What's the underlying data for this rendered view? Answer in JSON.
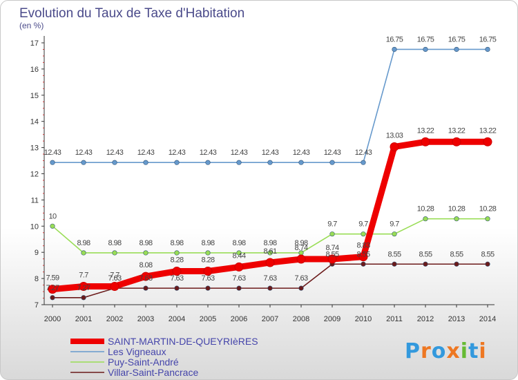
{
  "chart_data": {
    "type": "line",
    "title": "Evolution du Taux de Taxe d'Habitation",
    "subtitle": "(en %)",
    "x": [
      "2000",
      "2001",
      "2002",
      "2003",
      "2004",
      "2005",
      "2006",
      "2007",
      "2008",
      "2009",
      "2010",
      "2011",
      "2012",
      "2013",
      "2014"
    ],
    "yticks": [
      "7",
      "8",
      "9",
      "10",
      "11",
      "12",
      "13",
      "14",
      "15",
      "16",
      "17"
    ],
    "ylim": [
      7,
      17
    ],
    "series": [
      {
        "name": "Villar-Saint-Pancrace",
        "color": "#6b1a1a",
        "values": [
          7.27,
          7.27,
          7.63,
          7.63,
          7.63,
          7.63,
          7.63,
          7.63,
          7.63,
          8.55,
          8.55,
          8.55,
          8.55,
          8.55,
          8.55
        ],
        "labels": [
          "7.27",
          "7.27",
          "7.63",
          "7.63",
          "7.63",
          "7.63",
          "7.63",
          "7.63",
          "7.63",
          "8.55",
          "8.55",
          "8.55",
          "8.55",
          "8.55",
          "8.55"
        ]
      },
      {
        "name": "Puy-Saint-André",
        "color": "#99dd55",
        "values": [
          10,
          8.98,
          8.98,
          8.98,
          8.98,
          8.98,
          8.98,
          8.98,
          8.98,
          9.7,
          9.7,
          9.7,
          10.28,
          10.28,
          10.28
        ],
        "labels": [
          "10",
          "8.98",
          "8.98",
          "8.98",
          "8.98",
          "8.98",
          "8.98",
          "8.98",
          "8.98",
          "9.7",
          "9.7",
          "9.7",
          "10.28",
          "10.28",
          "10.28"
        ]
      },
      {
        "name": "Les Vigneaux",
        "color": "#6699cc",
        "values": [
          12.43,
          12.43,
          12.43,
          12.43,
          12.43,
          12.43,
          12.43,
          12.43,
          12.43,
          12.43,
          12.43,
          16.75,
          16.75,
          16.75,
          16.75
        ],
        "labels": [
          "12.43",
          "12.43",
          "12.43",
          "12.43",
          "12.43",
          "12.43",
          "12.43",
          "12.43",
          "12.43",
          "12.43",
          "12.43",
          "16.75",
          "16.75",
          "16.75",
          "16.75"
        ]
      },
      {
        "name": "SAINT-MARTIN-DE-QUEYRIèRES",
        "color": "#ee0000",
        "values": [
          7.59,
          7.7,
          7.7,
          8.08,
          8.28,
          8.28,
          8.44,
          8.61,
          8.74,
          8.74,
          8.83,
          13.03,
          13.22,
          13.22,
          13.22
        ],
        "labels": [
          "7.59",
          "7.7",
          "7.7",
          "8.08",
          "8.28",
          "8.28",
          "8.44",
          "8.61",
          "8.74",
          "8.74",
          "8.83",
          "13.03",
          "13.22",
          "13.22",
          "13.22"
        ]
      }
    ],
    "legend_order": [
      "SAINT-MARTIN-DE-QUEYRIèRES",
      "Les Vigneaux",
      "Puy-Saint-André",
      "Villar-Saint-Pancrace"
    ],
    "legend_position": "bottom-left"
  },
  "logo": {
    "text": "Proxiti",
    "letters": [
      "P",
      "r",
      "o",
      "x",
      "i",
      "t",
      "i"
    ],
    "colors": [
      "#3399dd",
      "#ee7722",
      "#3399dd",
      "#ee7722",
      "#66bb33",
      "#3399dd",
      "#ee7722"
    ]
  }
}
